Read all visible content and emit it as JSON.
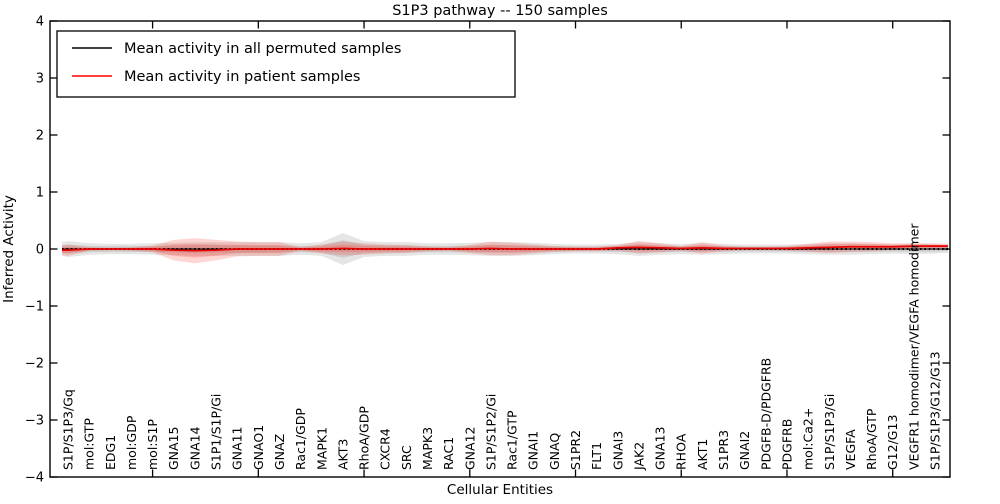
{
  "figure": {
    "title": "S1P3 pathway -- 150 samples",
    "xlabel": "Cellular Entities",
    "ylabel": "Inferred Activity",
    "legend": {
      "entries": [
        {
          "label": "Mean activity in all permuted samples",
          "color": "#000000"
        },
        {
          "label": "Mean activity in patient samples",
          "color": "#ff0000"
        }
      ],
      "position": "upper left"
    },
    "colors": {
      "permuted_line": "#000000",
      "patient_line": "#e60000",
      "permuted_band": "#000000",
      "patient_band": "#f44336",
      "axis": "#000000",
      "background": "#ffffff"
    }
  },
  "chart_data": {
    "type": "area",
    "title": "S1P3 pathway -- 150 samples",
    "xlabel": "Cellular Entities",
    "ylabel": "Inferred Activity",
    "ylim": [
      -4,
      4
    ],
    "yticks": [
      4,
      3,
      2,
      1,
      0,
      -1,
      -2,
      -3,
      -4
    ],
    "yticklabels": [
      "4",
      "3",
      "2",
      "1",
      "0",
      "−1",
      "−2",
      "−3",
      "−4"
    ],
    "xtick_major_every": 5,
    "grid": false,
    "legend_position": "upper left",
    "categories": [
      "S1P/S1P3/Gq",
      "mol:GTP",
      "EDG1",
      "mol:GDP",
      "mol:S1P",
      "GNA15",
      "GNA14",
      "S1P1/S1P/Gi",
      "GNA11",
      "GNAO1",
      "GNAZ",
      "Rac1/GDP",
      "MAPK1",
      "AKT3",
      "RhoA/GDP",
      "CXCR4",
      "SRC",
      "MAPK3",
      "RAC1",
      "GNA12",
      "S1P/S1P2/Gi",
      "Rac1/GTP",
      "GNAI1",
      "GNAQ",
      "S1PR2",
      "FLT1",
      "GNAI3",
      "JAK2",
      "GNA13",
      "RHOA",
      "AKT1",
      "S1PR3",
      "GNAI2",
      "PDGFB-D/PDGFRB",
      "PDGFRB",
      "mol:Ca2+",
      "S1P/S1P3/Gi",
      "VEGFA",
      "RhoA/GTP",
      "G12/G13",
      "VEGFR1 homodimer/VEGFA homodimer",
      "S1P/S1P3/G12/G13"
    ],
    "series": [
      {
        "name": "Mean activity in all permuted samples",
        "kind": "line",
        "color": "#000000",
        "values": [
          0,
          0,
          0,
          0,
          0,
          0,
          0,
          0,
          0,
          0,
          0,
          0,
          0,
          0,
          0,
          0,
          0,
          0,
          0,
          0,
          0,
          0,
          0,
          0,
          0,
          0,
          0,
          0,
          0,
          0,
          0,
          0,
          0,
          0,
          0,
          0,
          0,
          0,
          0,
          0,
          0,
          0
        ]
      },
      {
        "name": "Mean activity in patient samples",
        "kind": "line",
        "color": "#e60000",
        "values": [
          -0.02,
          0,
          0,
          0,
          0,
          -0.02,
          -0.03,
          -0.02,
          0,
          0,
          0,
          0,
          0,
          0.01,
          0,
          0,
          0,
          0,
          0,
          0,
          0.01,
          0,
          0,
          0,
          0,
          0,
          0.02,
          0.03,
          0.02,
          0.01,
          0.02,
          0.01,
          0.01,
          0.01,
          0.01,
          0.02,
          0.03,
          0.04,
          0.04,
          0.04,
          0.05,
          0.05
        ]
      },
      {
        "name": "Permuted samples spread",
        "kind": "band",
        "color": "#000000",
        "center": 0,
        "half_widths": [
          0.14,
          0.1,
          0.09,
          0.09,
          0.1,
          0.11,
          0.12,
          0.12,
          0.12,
          0.12,
          0.12,
          0.1,
          0.12,
          0.28,
          0.14,
          0.12,
          0.12,
          0.1,
          0.1,
          0.11,
          0.12,
          0.12,
          0.11,
          0.09,
          0.08,
          0.08,
          0.09,
          0.12,
          0.1,
          0.09,
          0.1,
          0.09,
          0.08,
          0.08,
          0.08,
          0.09,
          0.1,
          0.1,
          0.09,
          0.08,
          0.09,
          0.08
        ]
      },
      {
        "name": "Patient samples spread",
        "kind": "band",
        "color": "#f44336",
        "center": "patient_mean",
        "half_widths": [
          0.1,
          0.03,
          0.02,
          0.03,
          0.06,
          0.18,
          0.22,
          0.18,
          0.13,
          0.12,
          0.12,
          0.03,
          0.08,
          0.12,
          0.1,
          0.08,
          0.07,
          0.04,
          0.03,
          0.07,
          0.12,
          0.11,
          0.08,
          0.05,
          0.04,
          0.04,
          0.05,
          0.11,
          0.08,
          0.04,
          0.1,
          0.05,
          0.03,
          0.03,
          0.04,
          0.07,
          0.1,
          0.09,
          0.08,
          0.06,
          0.05,
          0.05
        ]
      }
    ]
  }
}
